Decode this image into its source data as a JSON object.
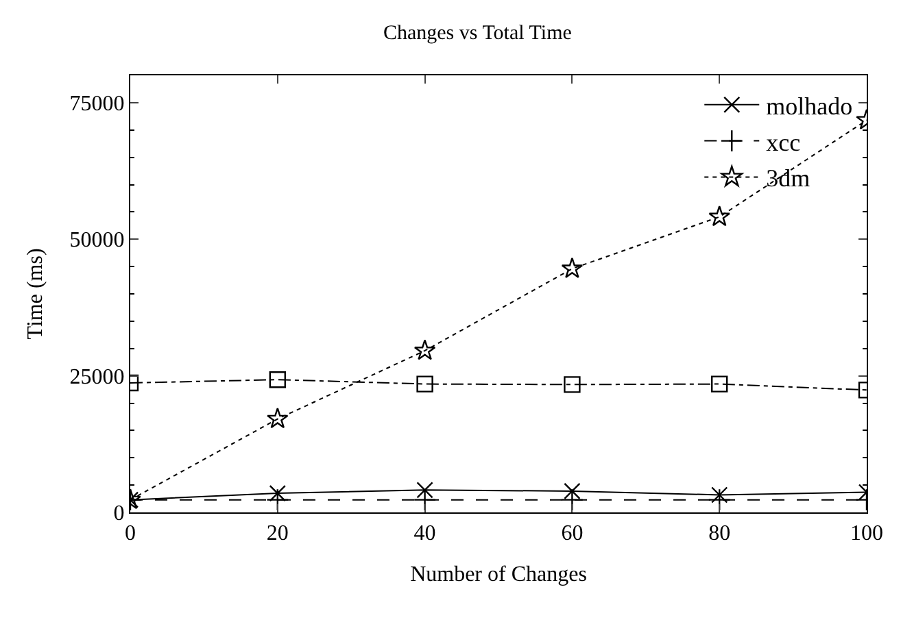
{
  "chart_data": {
    "type": "line",
    "title": "Changes vs Total Time",
    "xlabel": "Number of Changes",
    "ylabel": "Time (ms)",
    "x": [
      0,
      20,
      40,
      60,
      80,
      100
    ],
    "series": [
      {
        "name": "molhado",
        "color": "#000000",
        "marker": "x",
        "line_style": "solid",
        "values": [
          2300,
          3500,
          4100,
          3900,
          3200,
          3700
        ]
      },
      {
        "name": "xcc",
        "color": "#000000",
        "marker": "cross",
        "line_style": "dashed",
        "values": [
          2300,
          2300,
          2300,
          2300,
          2300,
          2300
        ]
      },
      {
        "name": "3dm",
        "color": "#000000",
        "marker": "star",
        "line_style": "dotted",
        "values": [
          2300,
          17100,
          29600,
          44600,
          54100,
          71800
        ]
      },
      {
        "color": "#000000",
        "marker": "square",
        "line_style": "dashdot",
        "values": [
          23700,
          24300,
          23500,
          23400,
          23500,
          22400
        ]
      }
    ],
    "xlim": [
      0,
      100
    ],
    "xticks": [
      0,
      20,
      40,
      60,
      80,
      100
    ],
    "ylim": [
      0,
      80000
    ],
    "yticks": [
      0,
      25000,
      50000,
      75000
    ],
    "legend": "top right"
  }
}
